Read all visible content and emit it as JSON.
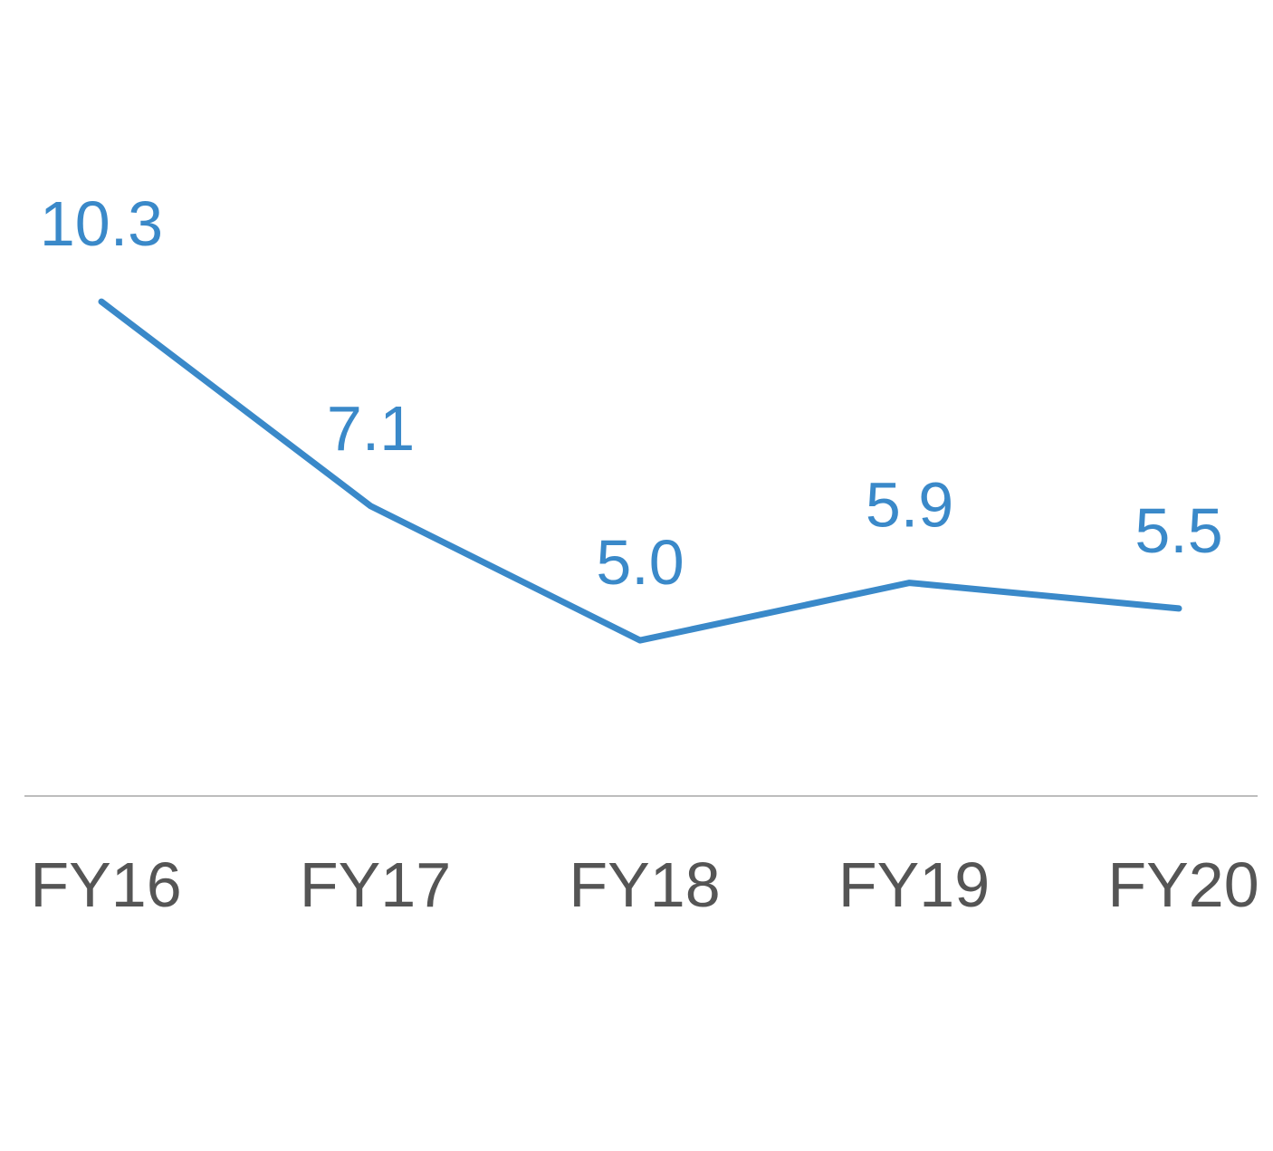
{
  "chart_data": {
    "type": "line",
    "categories": [
      "FY16",
      "FY17",
      "FY18",
      "FY19",
      "FY20"
    ],
    "series": [
      {
        "values": [
          10.3,
          7.1,
          5.0,
          5.9,
          5.5
        ],
        "data_labels": [
          "10.3",
          "7.1",
          "5.0",
          "5.9",
          "5.5"
        ]
      }
    ],
    "title": "",
    "xlabel": "",
    "ylabel": "",
    "ylim": [
      0,
      14
    ],
    "grid": false,
    "legend": "none",
    "colors": {
      "line": "#3a89c9",
      "data_label": "#3a89c9",
      "tick_label": "#555555",
      "axis": "#bdbdbd"
    }
  }
}
